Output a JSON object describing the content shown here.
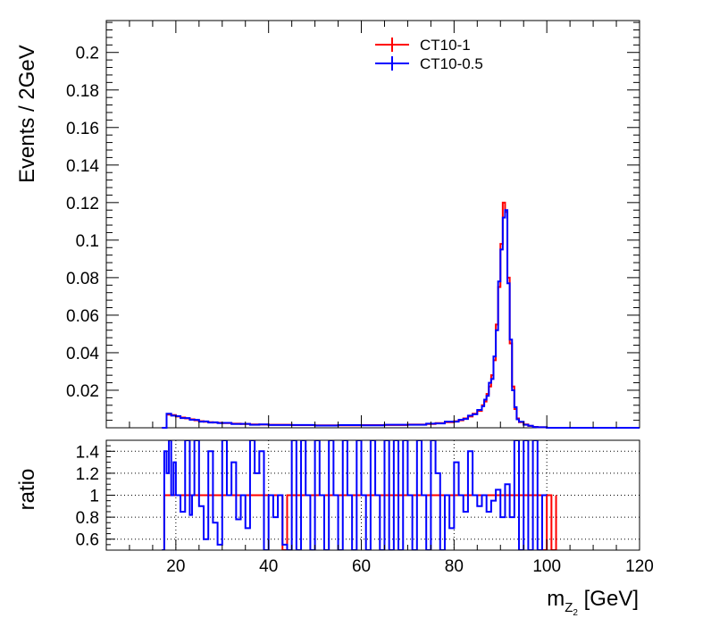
{
  "chart_data": [
    {
      "type": "line",
      "panel": "main",
      "title": "",
      "xlabel": "",
      "ylabel": "Events / 2GeV",
      "xlim": [
        5,
        120
      ],
      "ylim": [
        0,
        0.217
      ],
      "y_ticks": [
        "0.02",
        "0.04",
        "0.06",
        "0.08",
        "0.1",
        "0.12",
        "0.14",
        "0.16",
        "0.18",
        "0.2"
      ],
      "legend": {
        "placement": "top-center"
      },
      "series": [
        {
          "name": "CT10-1",
          "color": "#ff0000",
          "x": [
            17,
            18,
            19,
            20,
            21,
            22,
            23,
            24,
            25,
            26,
            27,
            28,
            29,
            30,
            32,
            34,
            36,
            38,
            40,
            45,
            50,
            55,
            60,
            65,
            70,
            74,
            76,
            78,
            80,
            81,
            82,
            83,
            84,
            85,
            86,
            86.5,
            87,
            87.5,
            88,
            88.5,
            89,
            89.5,
            90,
            90.5,
            91,
            91.5,
            92,
            92.5,
            93,
            93.5,
            94,
            95,
            96,
            97,
            98,
            100,
            105,
            110,
            120
          ],
          "y": [
            0.0,
            0.007,
            0.0068,
            0.006,
            0.0055,
            0.005,
            0.0045,
            0.004,
            0.0035,
            0.0032,
            0.003,
            0.0028,
            0.0027,
            0.0025,
            0.0022,
            0.002,
            0.0018,
            0.0017,
            0.0016,
            0.0014,
            0.0013,
            0.0013,
            0.0014,
            0.0015,
            0.0017,
            0.002,
            0.0025,
            0.003,
            0.0035,
            0.004,
            0.005,
            0.006,
            0.0075,
            0.009,
            0.012,
            0.014,
            0.018,
            0.022,
            0.028,
            0.036,
            0.055,
            0.075,
            0.098,
            0.12,
            0.115,
            0.08,
            0.045,
            0.022,
            0.01,
            0.005,
            0.003,
            0.0018,
            0.001,
            0.0005,
            0.0003,
            0.0,
            0.0,
            0.0,
            0.0
          ]
        },
        {
          "name": "CT10-0.5",
          "color": "#0000ff",
          "x": [
            17,
            18,
            19,
            20,
            21,
            22,
            23,
            24,
            25,
            26,
            27,
            28,
            29,
            30,
            32,
            34,
            36,
            38,
            40,
            45,
            50,
            55,
            60,
            65,
            70,
            74,
            76,
            78,
            80,
            81,
            82,
            83,
            84,
            85,
            86,
            86.5,
            87,
            87.5,
            88,
            88.5,
            89,
            89.5,
            90,
            90.5,
            91,
            91.5,
            92,
            92.5,
            93,
            93.5,
            94,
            95,
            96,
            97,
            98,
            100,
            105,
            110,
            120
          ],
          "y": [
            0.0,
            0.0075,
            0.0065,
            0.0062,
            0.0052,
            0.0052,
            0.0043,
            0.0042,
            0.0033,
            0.0034,
            0.0028,
            0.0029,
            0.0025,
            0.0026,
            0.002,
            0.0021,
            0.0016,
            0.0018,
            0.0015,
            0.0015,
            0.0012,
            0.0014,
            0.0013,
            0.0016,
            0.0016,
            0.0022,
            0.0023,
            0.0033,
            0.0033,
            0.0043,
            0.0047,
            0.0065,
            0.0072,
            0.0095,
            0.0115,
            0.015,
            0.017,
            0.024,
            0.026,
            0.038,
            0.052,
            0.078,
            0.095,
            0.112,
            0.116,
            0.077,
            0.047,
            0.02,
            0.011,
            0.0045,
            0.0032,
            0.0016,
            0.0011,
            0.0004,
            0.0003,
            0.0,
            0.0,
            0.0,
            0.0
          ]
        }
      ]
    },
    {
      "type": "line",
      "panel": "ratio",
      "title": "",
      "xlabel": "m_{Z_2} [GeV]",
      "ylabel": "ratio",
      "xlim": [
        5,
        120
      ],
      "ylim": [
        0.5,
        1.5
      ],
      "x_ticks": [
        "20",
        "40",
        "60",
        "80",
        "100",
        "120"
      ],
      "y_ticks": [
        "0.6",
        "0.8",
        "1",
        "1.2",
        "1.4"
      ],
      "grid": true,
      "series": [
        {
          "name": "CT10-1",
          "color": "#ff0000",
          "x": [
            17,
            17.5,
            42,
            43,
            44,
            98,
            99,
            100,
            101,
            102
          ],
          "y": [
            0.5,
            1.0,
            1.0,
            0.5,
            1.0,
            1.0,
            0.5,
            1.0,
            0.5,
            1.0
          ]
        },
        {
          "name": "CT10-0.5",
          "color": "#0000ff",
          "x": [
            17,
            17.5,
            18,
            18.5,
            19,
            19.5,
            20,
            21,
            22,
            23,
            23.5,
            24,
            25,
            26,
            27,
            28,
            29,
            30,
            31,
            32,
            33,
            34,
            35,
            36,
            37,
            38,
            39,
            40,
            41,
            42,
            43,
            44,
            45,
            46,
            47,
            48,
            49,
            50,
            51,
            52,
            53,
            54,
            55,
            56,
            57,
            58,
            59,
            60,
            61,
            62,
            63,
            64,
            65,
            66,
            67,
            68,
            69,
            70,
            71,
            72,
            73,
            74,
            75,
            76,
            77,
            78,
            79,
            80,
            81,
            82,
            83,
            84,
            85,
            86,
            87,
            88,
            89,
            90,
            91,
            92,
            93,
            94,
            95,
            96,
            97,
            98,
            99,
            100
          ],
          "y": [
            0.5,
            1.4,
            1.2,
            1.5,
            1.0,
            1.3,
            1.0,
            0.85,
            1.5,
            0.82,
            1.0,
            1.5,
            0.9,
            0.6,
            1.4,
            0.75,
            0.55,
            1.5,
            1.0,
            1.3,
            0.78,
            1.0,
            0.7,
            1.5,
            1.2,
            1.4,
            0.5,
            1.0,
            0.8,
            1.0,
            0.55,
            0.5,
            1.5,
            0.5,
            1.5,
            1.0,
            0.5,
            1.5,
            1.0,
            0.5,
            1.5,
            1.0,
            0.5,
            1.5,
            1.0,
            0.5,
            1.5,
            1.0,
            0.5,
            1.5,
            1.0,
            0.5,
            1.5,
            0.5,
            1.5,
            0.5,
            1.5,
            1.0,
            0.5,
            1.5,
            1.0,
            0.5,
            1.5,
            1.2,
            0.5,
            1.0,
            0.7,
            1.3,
            1.0,
            0.85,
            1.4,
            1.0,
            0.9,
            1.0,
            0.85,
            0.95,
            1.05,
            0.8,
            1.1,
            0.8,
            1.5,
            0.5,
            1.5,
            0.5,
            1.5,
            0.5,
            1.0,
            1.0
          ]
        }
      ]
    }
  ]
}
